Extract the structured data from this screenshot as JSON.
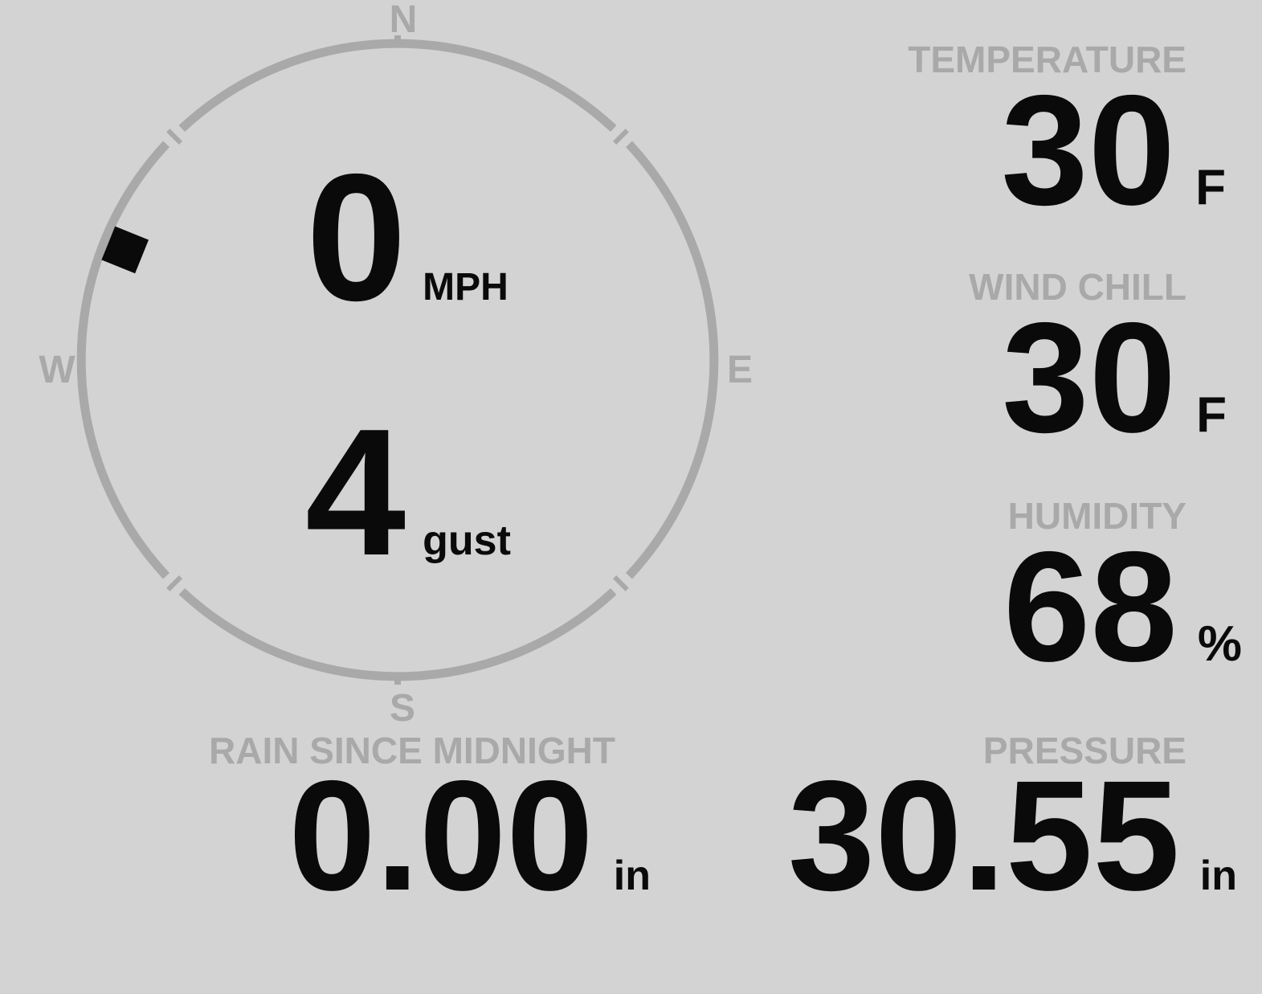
{
  "colors": {
    "background": "#d3d3d3",
    "gauge_gray": "#a9a9a9",
    "value_black": "#0a0a0a"
  },
  "wind_gauge": {
    "compass_labels": {
      "north": "N",
      "east": "E",
      "south": "S",
      "west": "W"
    },
    "speed_value": "0",
    "speed_unit": "MPH",
    "gust_value": "4",
    "gust_unit": "gust",
    "direction_deg": 292
  },
  "metrics": {
    "temperature": {
      "label": "TEMPERATURE",
      "value": "30",
      "unit": "F"
    },
    "wind_chill": {
      "label": "WIND CHILL",
      "value": "30",
      "unit": "F"
    },
    "humidity": {
      "label": "HUMIDITY",
      "value": "68",
      "unit": "%"
    },
    "rain_since_midnight": {
      "label": "RAIN SINCE MIDNIGHT",
      "value": "0.00",
      "unit": "in"
    },
    "pressure": {
      "label": "PRESSURE",
      "value": "30.55",
      "unit": "in"
    }
  }
}
